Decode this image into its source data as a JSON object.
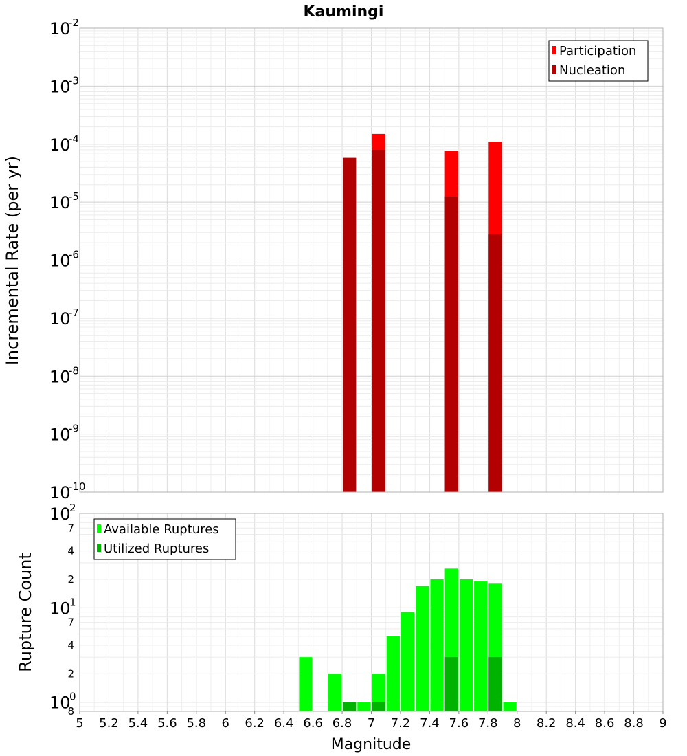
{
  "chart_data": [
    {
      "type": "bar",
      "title": "Kaumingi",
      "xlabel": "",
      "ylabel": "Incremental Rate (per yr)",
      "xlim": [
        5,
        9
      ],
      "ylim": [
        1e-10,
        0.01
      ],
      "yscale": "log",
      "ytick_exponents": [
        "-10",
        "-9",
        "-8",
        "-7",
        "-6",
        "-5",
        "-4",
        "-3",
        "-2"
      ],
      "grid": true,
      "legend_position": "top-right",
      "series": [
        {
          "name": "Participation",
          "color": "#ff0000",
          "x": [
            6.85,
            7.05,
            7.55,
            7.85
          ],
          "values": [
            5.8e-05,
            0.00015,
            7.7e-05,
            0.00011
          ]
        },
        {
          "name": "Nucleation",
          "color": "#b30000",
          "x": [
            6.85,
            7.05,
            7.55,
            7.85
          ],
          "values": [
            5.8e-05,
            8e-05,
            1.25e-05,
            2.8e-06
          ]
        }
      ]
    },
    {
      "type": "bar",
      "title": "",
      "xlabel": "Magnitude",
      "ylabel": "Rupture Count",
      "xlim": [
        5,
        9
      ],
      "xticks": [
        "5",
        "5.2",
        "5.4",
        "5.6",
        "5.8",
        "6",
        "6.2",
        "6.4",
        "6.6",
        "6.8",
        "7",
        "7.2",
        "7.4",
        "7.6",
        "7.8",
        "8",
        "8.2",
        "8.4",
        "8.6",
        "8.8",
        "9"
      ],
      "ylim": [
        0.8,
        100
      ],
      "yscale": "log",
      "ytick_exponents": [
        "0",
        "1",
        "2"
      ],
      "ytick_minor": [
        "2",
        "4",
        "7"
      ],
      "ytick_bottom": "8",
      "grid": true,
      "legend_position": "top-left",
      "series": [
        {
          "name": "Available Ruptures",
          "color": "#00ff00",
          "x": [
            6.55,
            6.75,
            6.85,
            6.95,
            7.05,
            7.15,
            7.25,
            7.35,
            7.45,
            7.55,
            7.65,
            7.75,
            7.85,
            7.95
          ],
          "values": [
            3,
            2,
            1,
            1,
            2,
            5,
            9,
            17,
            20,
            26,
            20,
            19,
            18,
            1
          ]
        },
        {
          "name": "Utilized Ruptures",
          "color": "#00b300",
          "x": [
            6.85,
            7.05,
            7.55,
            7.85
          ],
          "values": [
            1,
            1,
            3,
            3
          ]
        }
      ]
    }
  ]
}
